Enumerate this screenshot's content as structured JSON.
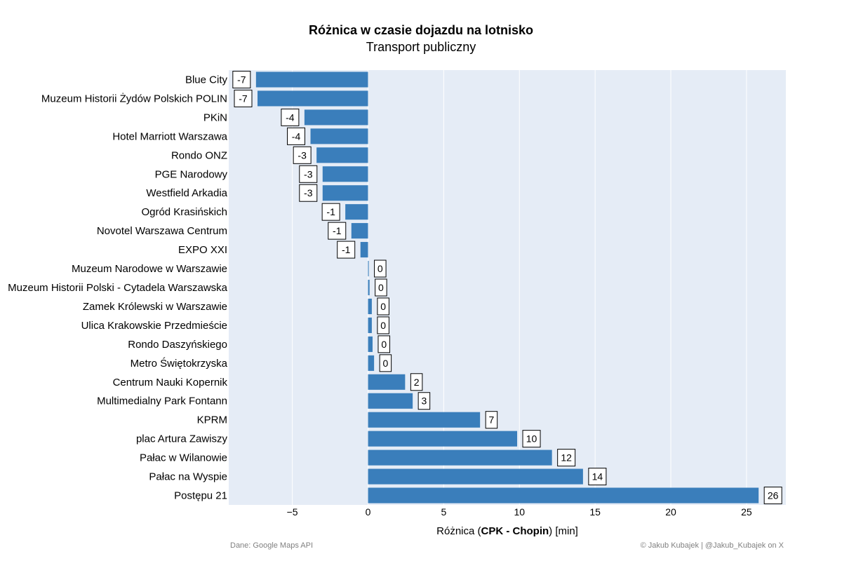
{
  "header": {
    "title": "Różnica w czasie dojazdu na lotnisko",
    "subtitle": "Transport publiczny"
  },
  "footer": {
    "source": "Dane: Google Maps API",
    "credit": "© Jakub Kubajek | @Jakub_Kubajek on X"
  },
  "axis": {
    "xlabel_prefix": "Różnica (",
    "xlabel_bold": "CPK - Chopin",
    "xlabel_suffix": ") [min]"
  },
  "colors": {
    "bar": "#3A7EBB",
    "panel": "#E5ECF6",
    "grid": "#FFFFFF"
  },
  "chart_data": {
    "type": "bar",
    "orientation": "horizontal",
    "title": "Różnica w czasie dojazdu na lotnisko",
    "subtitle": "Transport publiczny",
    "xlabel": "Różnica (CPK - Chopin) [min]",
    "ylabel": "",
    "xlim": [
      -9.2,
      27.6
    ],
    "xticks": [
      -5,
      0,
      5,
      10,
      15,
      20,
      25
    ],
    "xtick_labels": [
      "−5",
      "0",
      "5",
      "10",
      "15",
      "20",
      "25"
    ],
    "grid": true,
    "categories": [
      "Blue City",
      "Muzeum Historii Żydów Polskich POLIN",
      "PKiN",
      "Hotel Marriott Warszawa",
      "Rondo ONZ",
      "PGE Narodowy",
      "Westfield Arkadia",
      "Ogród Krasińskich",
      "Novotel Warszawa Centrum",
      "EXPO XXI",
      "Muzeum Narodowe w Warszawie",
      "Muzeum Historii Polski - Cytadela Warszawska",
      "Zamek Królewski w Warszawie",
      "Ulica Krakowskie Przedmieście",
      "Rondo Daszyńskiego",
      "Metro Świętokrzyska",
      "Centrum Nauki Kopernik",
      "Multimedialny Park Fontann",
      "KPRM",
      "plac Artura Zawiszy",
      "Pałac w Wilanowie",
      "Pałac na Wyspie",
      "Postępu 21"
    ],
    "values": [
      -7.4,
      -7.3,
      -4.2,
      -3.8,
      -3.4,
      -3.0,
      -3.0,
      -1.5,
      -1.1,
      -0.5,
      0.05,
      0.1,
      0.25,
      0.25,
      0.3,
      0.4,
      2.45,
      2.95,
      7.4,
      9.85,
      12.15,
      14.2,
      25.8
    ],
    "labels": [
      "-7",
      "-7",
      "-4",
      "-4",
      "-3",
      "-3",
      "-3",
      "-1",
      "-1",
      "-1",
      "0",
      "0",
      "0",
      "0",
      "0",
      "0",
      "2",
      "3",
      "7",
      "10",
      "12",
      "14",
      "26"
    ]
  }
}
